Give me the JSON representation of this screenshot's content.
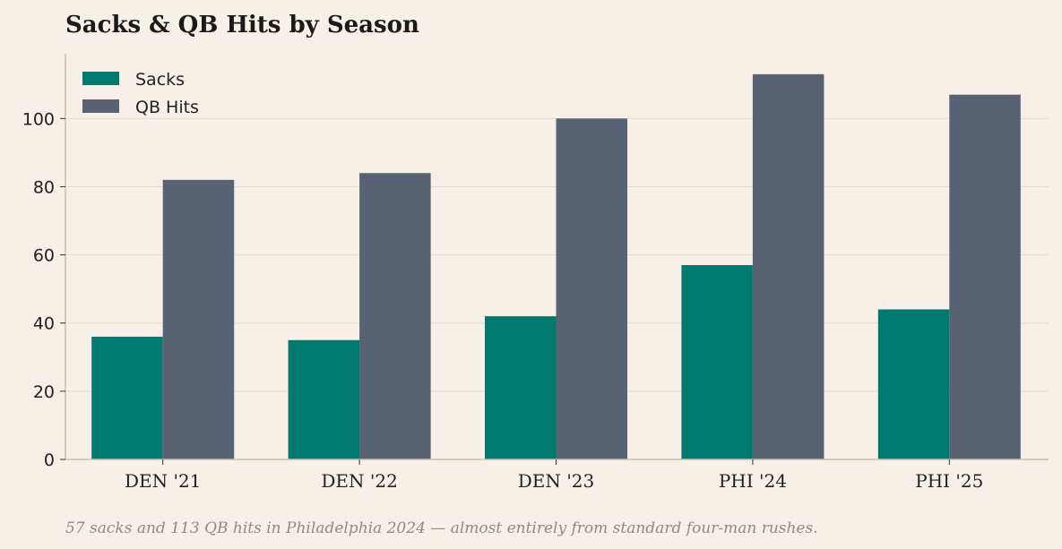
{
  "chart_data": {
    "type": "bar",
    "title": "Sacks & QB Hits by Season",
    "categories": [
      "DEN '21",
      "DEN '22",
      "DEN '23",
      "PHI '24",
      "PHI '25"
    ],
    "series": [
      {
        "name": "Sacks",
        "color": "#007a6e",
        "values": [
          36,
          35,
          42,
          57,
          44
        ]
      },
      {
        "name": "QB Hits",
        "color": "#586273",
        "values": [
          82,
          84,
          100,
          113,
          107
        ]
      }
    ],
    "yticks": [
      0,
      20,
      40,
      60,
      80,
      100
    ],
    "ylim": [
      0,
      119
    ],
    "xlabel": "",
    "ylabel": "",
    "grid": true,
    "legend_position": "top-left",
    "caption": "57 sacks and 113 QB hits in Philadelphia 2024 — almost entirely from standard four-man rushes."
  }
}
